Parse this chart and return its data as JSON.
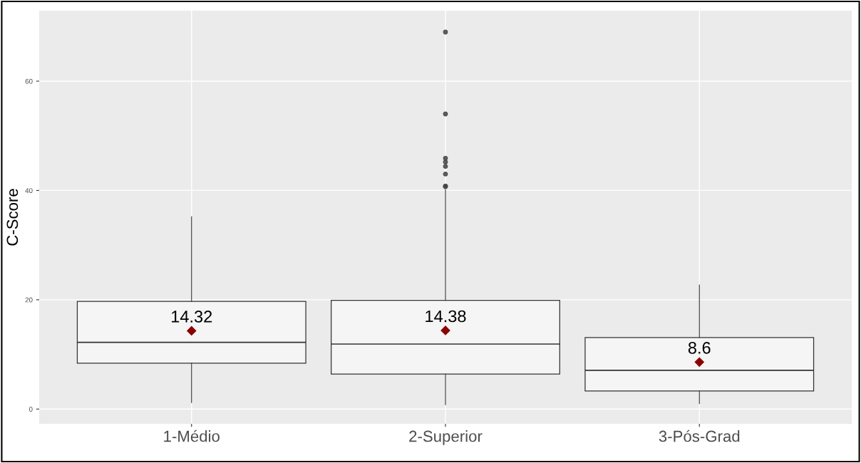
{
  "chart_data": {
    "type": "box",
    "ylabel": "C-Score",
    "categories": [
      "1-Médio",
      "2-Superior",
      "3-Pós-Grad"
    ],
    "boxes": [
      {
        "low": 1.2,
        "q1": 8.4,
        "median": 12.2,
        "q3": 19.7,
        "high": 35.2,
        "mean": 14.32
      },
      {
        "low": 0.8,
        "q1": 6.4,
        "median": 11.9,
        "q3": 19.9,
        "high": 40.1,
        "mean": 14.38,
        "outliers": [
          40.7,
          40.8,
          43.0,
          44.4,
          45.2,
          45.9,
          54.0,
          69.0
        ]
      },
      {
        "low": 1.0,
        "q1": 3.3,
        "median": 7.1,
        "q3": 13.1,
        "high": 22.7,
        "mean": 8.6
      }
    ],
    "annotations": [
      "14.32",
      "14.38",
      "8.6"
    ],
    "ylim": [
      -2.7,
      72.9
    ],
    "yticks": [
      0,
      20,
      40,
      60
    ],
    "grid": true,
    "color": "#f5f5f5"
  }
}
